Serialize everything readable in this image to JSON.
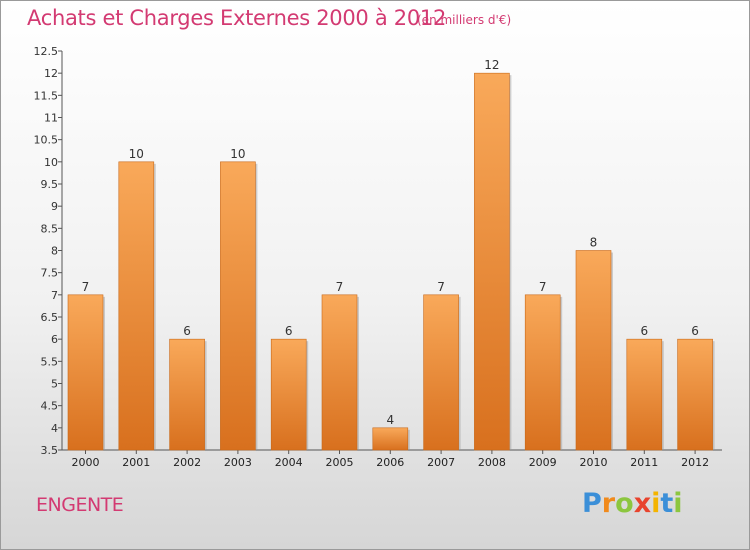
{
  "title": "Achats et Charges Externes 2000 à 2012",
  "unit": "(en milliers d'€)",
  "town": "ENGENTE",
  "logo": {
    "letters": [
      "P",
      "r",
      "o",
      "x",
      "i",
      "t",
      "i"
    ],
    "colors": [
      "#3b8fd8",
      "#f08a1c",
      "#8cc63f",
      "#e8432d",
      "#f4b400",
      "#3b8fd8",
      "#8cc63f"
    ]
  },
  "colors": {
    "title": "#d33a72",
    "bar_light": "#f9a95a",
    "bar_dark": "#d8701e"
  },
  "chart_data": {
    "type": "bar",
    "categories": [
      "2000",
      "2001",
      "2002",
      "2003",
      "2004",
      "2005",
      "2006",
      "2007",
      "2008",
      "2009",
      "2010",
      "2011",
      "2012"
    ],
    "values": [
      7,
      10,
      6,
      10,
      6,
      7,
      4,
      7,
      12,
      7,
      8,
      6,
      6
    ],
    "ylim": [
      3.5,
      12.5
    ],
    "yticks": [
      "3.5",
      "4",
      "4.5",
      "5",
      "5.5",
      "6",
      "6.5",
      "7",
      "7.5",
      "8",
      "8.5",
      "9",
      "9.5",
      "10",
      "10.5",
      "11",
      "11.5",
      "12",
      "12.5"
    ],
    "grid": false
  }
}
